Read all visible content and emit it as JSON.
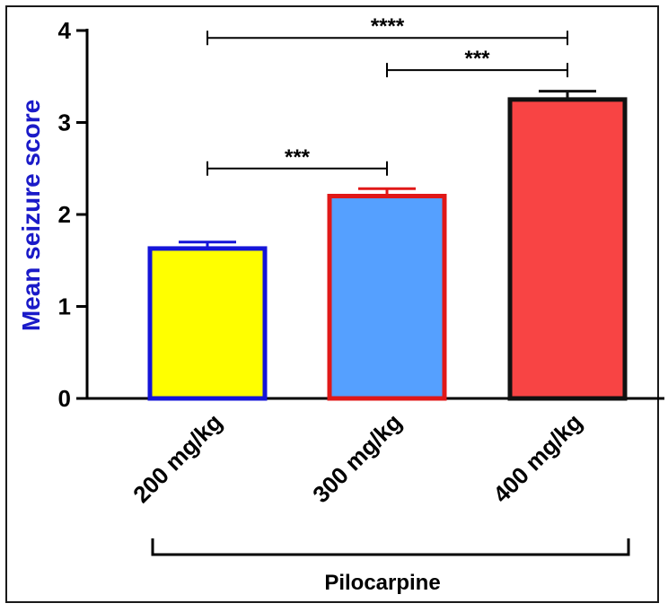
{
  "chart_data": {
    "type": "bar",
    "ylabel": "Mean seizure score",
    "ylabel_color": "#1a1ac8",
    "ylim": [
      0,
      4
    ],
    "yticks": [
      "0",
      "1",
      "2",
      "3",
      "4"
    ],
    "categories": [
      "200 mg/kg",
      "300 mg/kg",
      "400 mg/kg"
    ],
    "values": [
      1.63,
      2.2,
      3.25
    ],
    "errors": [
      0.07,
      0.08,
      0.09
    ],
    "fill_colors": [
      "#ffff00",
      "#55a0ff",
      "#f84444"
    ],
    "edge_colors": [
      "#1515d8",
      "#e01818",
      "#111111"
    ],
    "significance": [
      {
        "from": 0,
        "to": 1,
        "label": "***",
        "y": 2.5
      },
      {
        "from": 0,
        "to": 2,
        "label": "****",
        "y": 3.92
      },
      {
        "from": 1,
        "to": 2,
        "label": "***",
        "y": 3.57
      }
    ],
    "group_label": "Pilocarpine"
  }
}
